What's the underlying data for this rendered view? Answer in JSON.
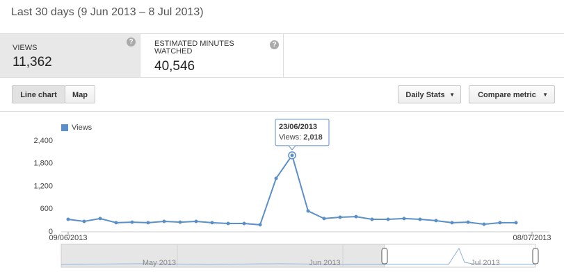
{
  "header": {
    "title": "Last 30 days (9 Jun 2013 – 8 Jul 2013)"
  },
  "metrics": [
    {
      "label": "VIEWS",
      "value": "11,362"
    },
    {
      "label": "ESTIMATED MINUTES WATCHED",
      "value": "40,546"
    }
  ],
  "toolbar": {
    "left": [
      "Line chart",
      "Map"
    ],
    "right": [
      "Daily Stats",
      "Compare metric"
    ]
  },
  "chart_data": {
    "type": "line",
    "x": [
      "2013-06-09",
      "2013-06-10",
      "2013-06-11",
      "2013-06-12",
      "2013-06-13",
      "2013-06-14",
      "2013-06-15",
      "2013-06-16",
      "2013-06-17",
      "2013-06-18",
      "2013-06-19",
      "2013-06-20",
      "2013-06-21",
      "2013-06-22",
      "2013-06-23",
      "2013-06-24",
      "2013-06-25",
      "2013-06-26",
      "2013-06-27",
      "2013-06-28",
      "2013-06-29",
      "2013-06-30",
      "2013-07-01",
      "2013-07-02",
      "2013-07-03",
      "2013-07-04",
      "2013-07-05",
      "2013-07-06",
      "2013-07-07"
    ],
    "series": [
      {
        "name": "Views",
        "color": "#5b8fc7",
        "values": [
          330,
          275,
          350,
          240,
          255,
          240,
          275,
          255,
          275,
          240,
          220,
          220,
          185,
          1410,
          2018,
          550,
          350,
          385,
          400,
          330,
          330,
          350,
          330,
          295,
          240,
          255,
          200,
          240,
          240
        ]
      }
    ],
    "xlim": [
      "2013-06-09",
      "2013-07-08"
    ],
    "xticks": [
      {
        "value": "2013-06-09",
        "label": "09/06/2013"
      },
      {
        "value": "2013-07-08",
        "label": "08/07/2013"
      }
    ],
    "ylim": [
      0,
      2400
    ],
    "yticks": [
      0,
      600,
      {
        "value": 1200,
        "label": "1,200"
      },
      {
        "value": 1800,
        "label": "1,800"
      },
      {
        "value": 2400,
        "label": "2,400"
      }
    ],
    "grid": false,
    "legend": "top-left",
    "tooltip": {
      "title": "23/06/2013",
      "series_label": "Views:",
      "value_label": "2,018"
    }
  },
  "navigator": {
    "labels": [
      "May 2013",
      "Jun 2013",
      "Jul 2013"
    ]
  }
}
